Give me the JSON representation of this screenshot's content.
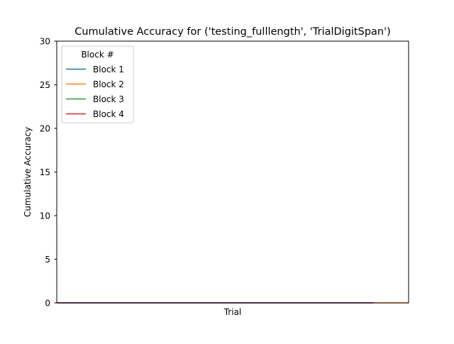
{
  "chart_data": {
    "type": "line",
    "title": "Cumulative Accuracy for ('testing_fulllength', 'TrialDigitSpan')",
    "xlabel": "Trial",
    "ylabel": "Cumulative Accuracy",
    "ylim": [
      0,
      30
    ],
    "xlim": [
      0,
      10
    ],
    "yticks": [
      0,
      5,
      10,
      15,
      20,
      25,
      30
    ],
    "xticks_visible": false,
    "grid": false,
    "legend": {
      "title": "Block #",
      "placement": "upper-left"
    },
    "series": [
      {
        "name": "Block 1",
        "color": "#1f77b4",
        "x": [
          0,
          9
        ],
        "values": [
          0,
          0
        ]
      },
      {
        "name": "Block 2",
        "color": "#ff7f0e",
        "x": [
          0,
          10
        ],
        "values": [
          0,
          0
        ]
      },
      {
        "name": "Block 3",
        "color": "#2ca02c",
        "x": [
          0,
          9
        ],
        "values": [
          0,
          0
        ]
      },
      {
        "name": "Block 4",
        "color": "#d62728",
        "x": [
          0,
          9
        ],
        "values": [
          0,
          0
        ]
      }
    ],
    "overlay_color": "#9467bd"
  }
}
